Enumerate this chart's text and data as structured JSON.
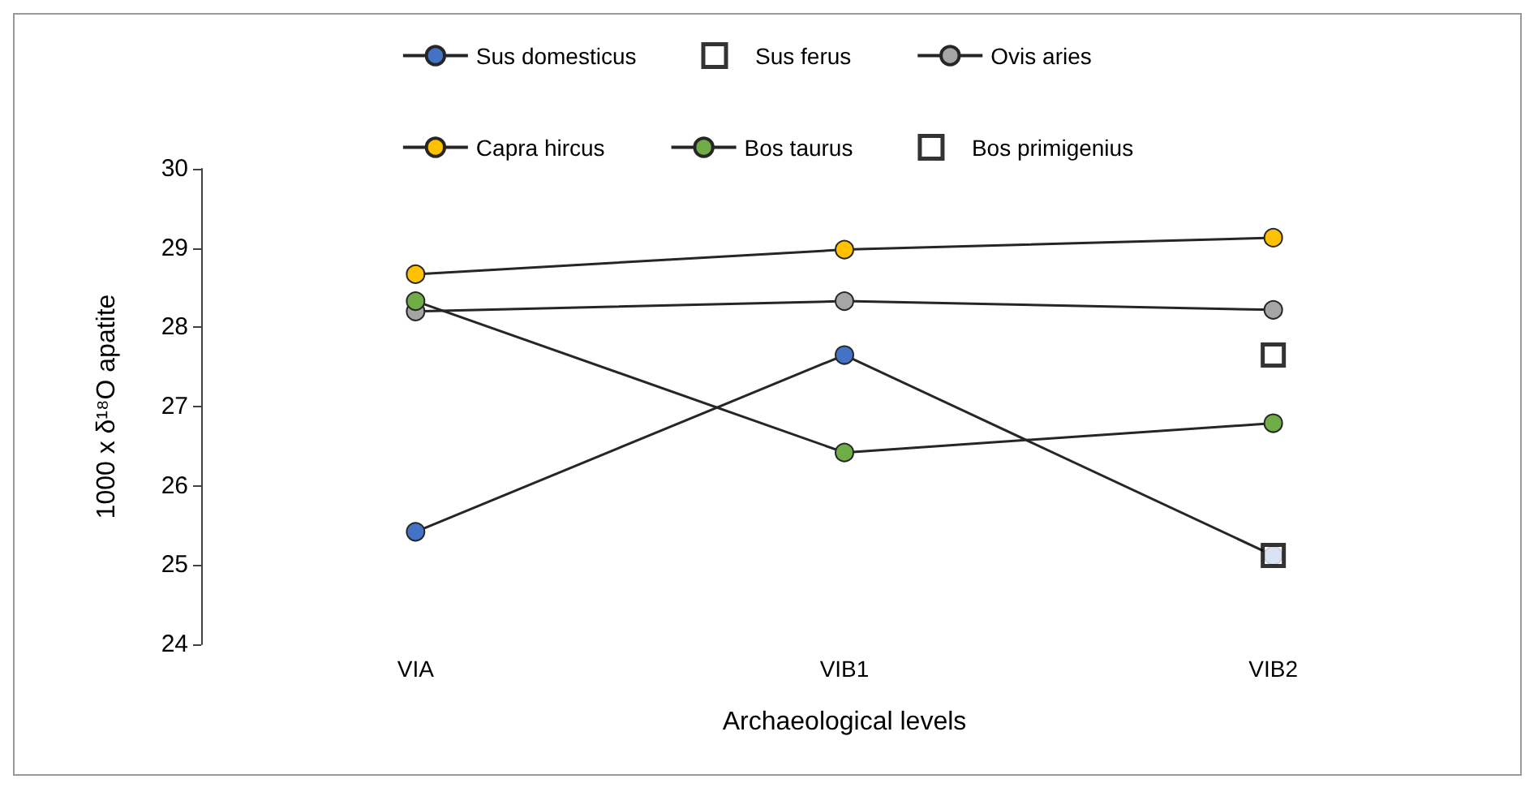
{
  "chart_data": {
    "type": "line",
    "xlabel": "Archaeological levels",
    "ylabel": "1000 x δ¹⁸O apatite",
    "categories": [
      "VIA",
      "VIB1",
      "VIB2"
    ],
    "ylim": [
      24,
      30
    ],
    "yticks": [
      24,
      25,
      26,
      27,
      28,
      29,
      30
    ],
    "grid": false,
    "legend": "top",
    "marker": "circle",
    "series": [
      {
        "name": "Sus domesticus",
        "color": "#4472c4",
        "values": [
          25.42,
          27.65,
          25.12
        ]
      },
      {
        "name": "Sus ferus",
        "type": "scatter",
        "marker": "square",
        "color": "#000000",
        "values": [
          null,
          null,
          25.12
        ]
      },
      {
        "name": "Ovis aries",
        "color": "#a5a5a5",
        "values": [
          28.2,
          28.33,
          28.22
        ]
      },
      {
        "name": "Capra hircus",
        "color": "#ffc000",
        "values": [
          28.67,
          28.98,
          29.13
        ]
      },
      {
        "name": "Bos taurus",
        "color": "#70ad47",
        "values": [
          28.33,
          26.42,
          26.79
        ]
      },
      {
        "name": "Bos primigenius",
        "type": "scatter",
        "marker": "square",
        "color": "#000000",
        "values": [
          null,
          null,
          27.65
        ]
      }
    ]
  }
}
